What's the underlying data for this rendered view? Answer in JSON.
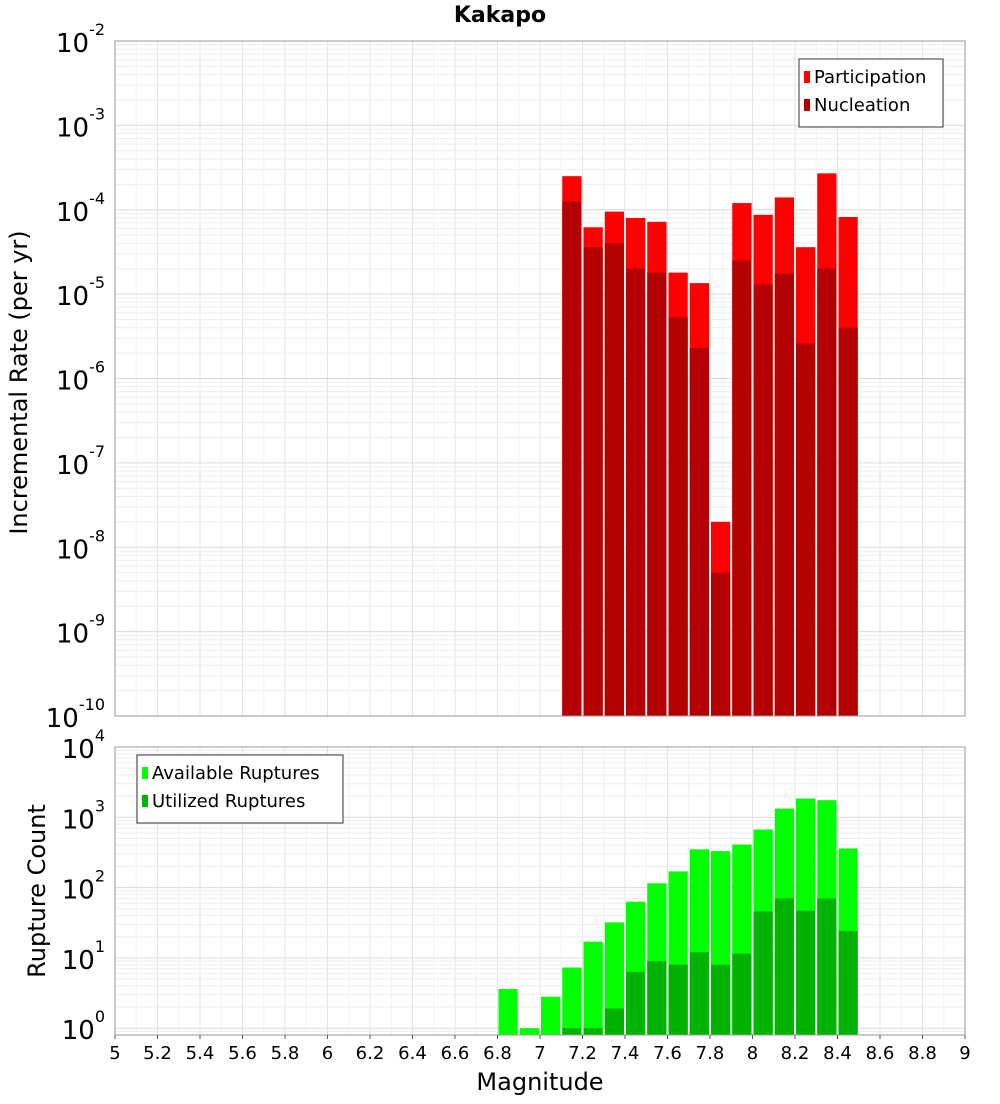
{
  "chart_data": [
    {
      "type": "bar",
      "title": "Kakapo",
      "xlabel": "",
      "ylabel": "Incremental Rate (per yr)",
      "yscale": "log",
      "ylim": [
        1e-10,
        0.01
      ],
      "xlim": [
        5,
        9
      ],
      "y_tick_exponents": [
        "-10",
        "-9",
        "-8",
        "-7",
        "-6",
        "-5",
        "-4",
        "-3",
        "-2"
      ],
      "grid": true,
      "legend_position": "top-right",
      "bin_width": 0.1,
      "x": [
        7.15,
        7.25,
        7.35,
        7.45,
        7.55,
        7.65,
        7.75,
        7.85,
        7.95,
        8.05,
        8.15,
        8.25,
        8.35,
        8.45
      ],
      "series": [
        {
          "name": "Participation",
          "color": "#ff0000",
          "values": [
            0.00025,
            6.2e-05,
            9.5e-05,
            8e-05,
            7.2e-05,
            1.8e-05,
            1.35e-05,
            2e-08,
            0.00012,
            8.7e-05,
            0.00014,
            3.6e-05,
            0.00027,
            8.2e-05
          ]
        },
        {
          "name": "Nucleation",
          "color": "#b30000",
          "values": [
            0.000125,
            3.6e-05,
            4e-05,
            2e-05,
            1.8e-05,
            5.3e-06,
            2.3e-06,
            5e-09,
            2.5e-05,
            1.3e-05,
            1.75e-05,
            2.6e-06,
            2e-05,
            4e-06
          ]
        }
      ]
    },
    {
      "type": "bar",
      "title": "",
      "xlabel": "Magnitude",
      "ylabel": "Rupture Count",
      "yscale": "log",
      "ylim": [
        0.8,
        10000
      ],
      "xlim": [
        5,
        9
      ],
      "x_ticks": [
        "5",
        "5.2",
        "5.4",
        "5.6",
        "5.8",
        "6",
        "6.2",
        "6.4",
        "6.6",
        "6.8",
        "7",
        "7.2",
        "7.4",
        "7.6",
        "7.8",
        "8",
        "8.2",
        "8.4",
        "8.6",
        "8.8",
        "9"
      ],
      "y_tick_exponents": [
        "0",
        "1",
        "2",
        "3",
        "4"
      ],
      "grid": true,
      "legend_position": "top-left",
      "bin_width": 0.1,
      "x": [
        6.85,
        6.95,
        7.05,
        7.15,
        7.25,
        7.35,
        7.45,
        7.55,
        7.65,
        7.75,
        7.85,
        7.95,
        8.05,
        8.15,
        8.25,
        8.35,
        8.45
      ],
      "series": [
        {
          "name": "Available Ruptures",
          "color": "#00ff00",
          "values": [
            3.6,
            1,
            2.8,
            7.3,
            17,
            32,
            63,
            115,
            170,
            350,
            330,
            410,
            670,
            1330,
            1850,
            1750,
            360
          ]
        },
        {
          "name": "Utilized Ruptures",
          "color": "#00b300",
          "values": [
            0,
            0,
            0,
            1,
            1,
            1.9,
            6.3,
            9.0,
            8.0,
            12,
            8.0,
            11.5,
            46,
            70,
            47,
            70,
            24
          ]
        }
      ]
    }
  ]
}
